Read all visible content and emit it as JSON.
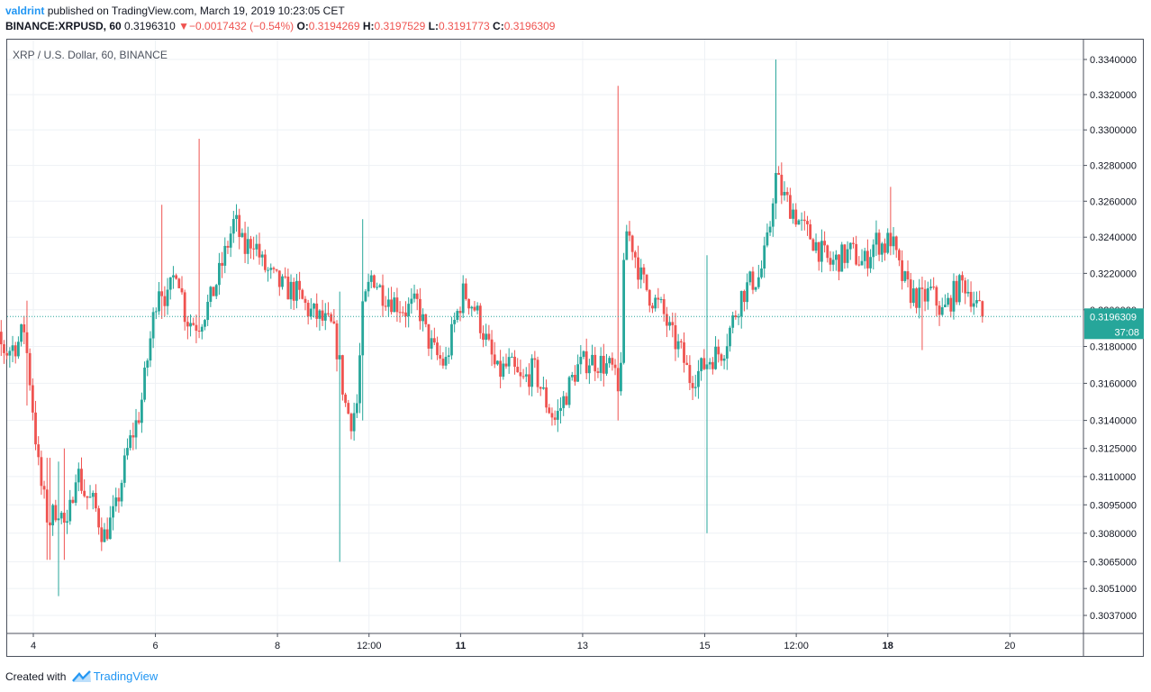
{
  "header": {
    "user": "valdrint",
    "published_text": "published on TradingView.com, March 19, 2019 10:23:05 CET",
    "symbol": "BINANCE:XRPUSD, 60",
    "last": "0.3196310",
    "change_arrow": "▼",
    "change": "−0.0017432 (−0.54%)",
    "o_label": "O:",
    "o_value": "0.3194269",
    "h_label": "H:",
    "h_value": "0.3197529",
    "l_label": "L:",
    "l_value": "0.3191773",
    "c_label": "C:",
    "c_value": "0.3196309"
  },
  "chart_title": "XRP / U.S. Dollar, 60, BINANCE",
  "footer": {
    "created_with": "Created with",
    "brand": "TradingView"
  },
  "colors": {
    "up": "#26a69a",
    "down": "#ef5350",
    "grid": "#eef1f5",
    "text": "#131722",
    "price_tag": "#26a69a"
  },
  "chart_data": {
    "type": "candlestick",
    "title": "XRP / U.S. Dollar, 60, BINANCE",
    "interval": "60",
    "x_ticks": [
      {
        "label": "4",
        "t": 1,
        "bold": false
      },
      {
        "label": "6",
        "t": 3,
        "bold": false
      },
      {
        "label": "8",
        "t": 5,
        "bold": false
      },
      {
        "label": "12:00",
        "t": 6.5,
        "bold": false
      },
      {
        "label": "11",
        "t": 8,
        "bold": true
      },
      {
        "label": "13",
        "t": 10,
        "bold": false
      },
      {
        "label": "15",
        "t": 12,
        "bold": false
      },
      {
        "label": "12:00",
        "t": 13.5,
        "bold": false
      },
      {
        "label": "18",
        "t": 15,
        "bold": true
      },
      {
        "label": "20",
        "t": 17,
        "bold": false
      }
    ],
    "x_range": [
      0.05,
      18.2
    ],
    "y_ticks": [
      "0.3340000",
      "0.3320000",
      "0.3300000",
      "0.3280000",
      "0.3260000",
      "0.3240000",
      "0.3220000",
      "0.3200000",
      "0.3180000",
      "0.3160000",
      "0.3140000",
      "0.3125000",
      "0.3110000",
      "0.3095000",
      "0.3080000",
      "0.3065000",
      "0.3051000",
      "0.3037000"
    ],
    "y_axis": "log",
    "current_price": "0.3196309",
    "countdown": "37:08",
    "candle_count": 352,
    "close_series": [
      [
        0.05,
        0.3205
      ],
      [
        0.2,
        0.3188
      ],
      [
        0.4,
        0.3183
      ],
      [
        0.55,
        0.3177
      ],
      [
        0.75,
        0.3182
      ],
      [
        0.85,
        0.319
      ],
      [
        0.95,
        0.316
      ],
      [
        1.1,
        0.311
      ],
      [
        1.25,
        0.3085
      ],
      [
        1.4,
        0.3095
      ],
      [
        1.55,
        0.308
      ],
      [
        1.7,
        0.3115
      ],
      [
        1.85,
        0.31
      ],
      [
        2.0,
        0.3095
      ],
      [
        2.15,
        0.3078
      ],
      [
        2.35,
        0.3092
      ],
      [
        2.55,
        0.3125
      ],
      [
        2.75,
        0.3145
      ],
      [
        2.9,
        0.318
      ],
      [
        3.05,
        0.3215
      ],
      [
        3.2,
        0.3205
      ],
      [
        3.35,
        0.3225
      ],
      [
        3.5,
        0.3195
      ],
      [
        3.7,
        0.3192
      ],
      [
        3.9,
        0.3205
      ],
      [
        4.05,
        0.322
      ],
      [
        4.2,
        0.3238
      ],
      [
        4.3,
        0.325
      ],
      [
        4.45,
        0.3232
      ],
      [
        4.6,
        0.324
      ],
      [
        4.75,
        0.3225
      ],
      [
        4.9,
        0.3218
      ],
      [
        5.1,
        0.3212
      ],
      [
        5.3,
        0.321
      ],
      [
        5.5,
        0.32
      ],
      [
        5.7,
        0.3195
      ],
      [
        5.9,
        0.319
      ],
      [
        6.0,
        0.3175
      ],
      [
        6.1,
        0.315
      ],
      [
        6.2,
        0.314
      ],
      [
        6.3,
        0.3148
      ],
      [
        6.4,
        0.32
      ],
      [
        6.55,
        0.322
      ],
      [
        6.7,
        0.321
      ],
      [
        6.9,
        0.3205
      ],
      [
        7.1,
        0.32
      ],
      [
        7.3,
        0.3203
      ],
      [
        7.45,
        0.3185
      ],
      [
        7.6,
        0.3175
      ],
      [
        7.75,
        0.317
      ],
      [
        7.9,
        0.3193
      ],
      [
        8.05,
        0.321
      ],
      [
        8.25,
        0.32
      ],
      [
        8.45,
        0.318
      ],
      [
        8.6,
        0.3165
      ],
      [
        8.8,
        0.317
      ],
      [
        9.0,
        0.316
      ],
      [
        9.2,
        0.3168
      ],
      [
        9.4,
        0.315
      ],
      [
        9.55,
        0.314
      ],
      [
        9.7,
        0.3152
      ],
      [
        9.9,
        0.3168
      ],
      [
        10.1,
        0.3173
      ],
      [
        10.3,
        0.3171
      ],
      [
        10.5,
        0.3167
      ],
      [
        10.6,
        0.315
      ],
      [
        10.7,
        0.3245
      ],
      [
        10.8,
        0.3238
      ],
      [
        10.95,
        0.3218
      ],
      [
        11.1,
        0.3208
      ],
      [
        11.3,
        0.32
      ],
      [
        11.45,
        0.3186
      ],
      [
        11.6,
        0.3178
      ],
      [
        11.75,
        0.3163
      ],
      [
        11.9,
        0.3166
      ],
      [
        12.1,
        0.3174
      ],
      [
        12.3,
        0.3178
      ],
      [
        12.45,
        0.3193
      ],
      [
        12.6,
        0.3208
      ],
      [
        12.75,
        0.3215
      ],
      [
        12.9,
        0.3218
      ],
      [
        13.05,
        0.324
      ],
      [
        13.15,
        0.3275
      ],
      [
        13.3,
        0.3262
      ],
      [
        13.45,
        0.3255
      ],
      [
        13.6,
        0.3245
      ],
      [
        13.75,
        0.324
      ],
      [
        13.9,
        0.3232
      ],
      [
        14.05,
        0.3225
      ],
      [
        14.2,
        0.3228
      ],
      [
        14.4,
        0.3232
      ],
      [
        14.6,
        0.3225
      ],
      [
        14.8,
        0.3238
      ],
      [
        14.95,
        0.3235
      ],
      [
        15.05,
        0.324
      ],
      [
        15.2,
        0.322
      ],
      [
        15.35,
        0.321
      ],
      [
        15.55,
        0.3205
      ],
      [
        15.7,
        0.321
      ],
      [
        15.9,
        0.3198
      ],
      [
        16.1,
        0.321
      ],
      [
        16.25,
        0.3215
      ],
      [
        16.4,
        0.3206
      ],
      [
        16.55,
        0.3196
      ]
    ],
    "wick_spikes": [
      {
        "t": 0.9,
        "high": 0.3205,
        "low": 0.3148
      },
      {
        "t": 1.25,
        "high": 0.312,
        "low": 0.3066
      },
      {
        "t": 1.4,
        "high": 0.3118,
        "low": 0.3047
      },
      {
        "t": 1.5,
        "high": 0.3125,
        "low": 0.3066
      },
      {
        "t": 3.1,
        "high": 0.3258,
        "low": 0.3195
      },
      {
        "t": 3.7,
        "high": 0.3295,
        "low": 0.32
      },
      {
        "t": 6.0,
        "high": 0.321,
        "low": 0.3065
      },
      {
        "t": 6.4,
        "high": 0.325,
        "low": 0.314
      },
      {
        "t": 10.6,
        "high": 0.3325,
        "low": 0.314
      },
      {
        "t": 12.05,
        "high": 0.323,
        "low": 0.308
      },
      {
        "t": 13.15,
        "high": 0.334,
        "low": 0.325
      },
      {
        "t": 15.05,
        "high": 0.3268,
        "low": 0.323
      },
      {
        "t": 15.55,
        "high": 0.3215,
        "low": 0.3178
      }
    ]
  }
}
